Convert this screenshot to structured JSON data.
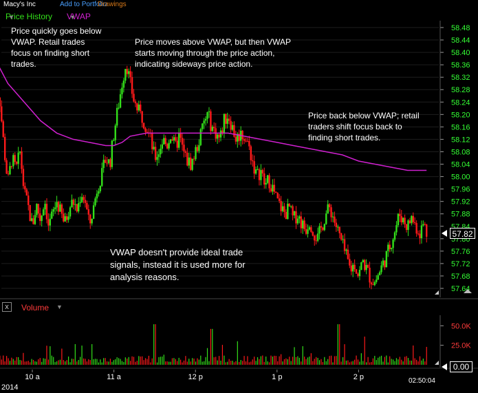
{
  "header": {
    "symbol": "Macy's Inc",
    "add_portfolio": "Add to Portfolio",
    "drawings": "Drawings",
    "price_history_label": "Price History",
    "vwap_label": "VWAP"
  },
  "volume": {
    "label": "Volume",
    "close_symbol": "x"
  },
  "footer": {
    "year": "2014",
    "time": "02:50:04"
  },
  "annotations": {
    "a1": [
      "Price quickly goes below",
      "VWAP. Retail trades",
      "focus on finding short",
      "trades."
    ],
    "a2": [
      "Price moves above VWAP, but then VWAP",
      "starts moving through the price action,",
      "indicating sideways price action."
    ],
    "a3": [
      "Price back below VWAP; retail",
      "traders shift focus back to",
      "finding short trades."
    ],
    "a4": [
      "VWAP doesn't provide ideal trade",
      "signals, instead it is used more for",
      "analysis reasons."
    ]
  },
  "colors": {
    "up": "#33e01a",
    "down": "#ff1a1a",
    "vwap": "#d020d0",
    "axis_text": "#34ff34",
    "grid": "#1e1e1e"
  },
  "chart_data": {
    "type": "candlestick",
    "price_axis": {
      "ticks": [
        "58.48",
        "58.44",
        "58.40",
        "58.36",
        "58.32",
        "58.28",
        "58.24",
        "58.20",
        "58.16",
        "58.12",
        "58.08",
        "58.04",
        "58.00",
        "57.96",
        "57.92",
        "57.88",
        "57.84",
        "57.80",
        "57.76",
        "57.72",
        "57.68",
        "57.64"
      ],
      "range": [
        57.63,
        58.49
      ]
    },
    "time_axis": {
      "ticks": [
        "10 a",
        "11 a",
        "12 p",
        "1 p",
        "2 p"
      ]
    },
    "current_price": "57.82",
    "price_path": [
      [
        "9:30",
        58.4
      ],
      [
        "9:33",
        58.3
      ],
      [
        "9:36",
        58.25
      ],
      [
        "9:39",
        58.1
      ],
      [
        "9:42",
        57.98
      ],
      [
        "9:45",
        58.06
      ],
      [
        "9:48",
        58.02
      ],
      [
        "9:51",
        58.08
      ],
      [
        "9:54",
        57.95
      ],
      [
        "9:57",
        57.9
      ],
      [
        "10:00",
        57.84
      ],
      [
        "10:03",
        57.91
      ],
      [
        "10:06",
        57.86
      ],
      [
        "10:09",
        57.93
      ],
      [
        "10:12",
        57.84
      ],
      [
        "10:15",
        57.88
      ],
      [
        "10:18",
        57.92
      ],
      [
        "10:21",
        57.88
      ],
      [
        "10:24",
        57.85
      ],
      [
        "10:27",
        57.9
      ],
      [
        "10:30",
        57.92
      ],
      [
        "10:33",
        57.89
      ],
      [
        "10:36",
        57.95
      ],
      [
        "10:39",
        57.92
      ],
      [
        "10:42",
        57.84
      ],
      [
        "10:45",
        57.9
      ],
      [
        "10:48",
        57.97
      ],
      [
        "10:51",
        58.0
      ],
      [
        "10:54",
        58.06
      ],
      [
        "10:57",
        58.04
      ],
      [
        "11:00",
        58.14
      ],
      [
        "11:03",
        58.22
      ],
      [
        "11:06",
        58.3
      ],
      [
        "11:09",
        58.37
      ],
      [
        "11:12",
        58.3
      ],
      [
        "11:15",
        58.24
      ],
      [
        "11:18",
        58.21
      ],
      [
        "11:21",
        58.19
      ],
      [
        "11:24",
        58.16
      ],
      [
        "11:27",
        58.12
      ],
      [
        "11:30",
        58.06
      ],
      [
        "11:33",
        58.08
      ],
      [
        "11:36",
        58.12
      ],
      [
        "11:39",
        58.1
      ],
      [
        "11:42",
        58.14
      ],
      [
        "11:45",
        58.09
      ],
      [
        "11:48",
        58.13
      ],
      [
        "11:51",
        58.08
      ],
      [
        "11:54",
        58.05
      ],
      [
        "11:57",
        58.04
      ],
      [
        "12:00",
        58.08
      ],
      [
        "12:03",
        58.12
      ],
      [
        "12:06",
        58.17
      ],
      [
        "12:09",
        58.2
      ],
      [
        "12:12",
        58.16
      ],
      [
        "12:15",
        58.14
      ],
      [
        "12:18",
        58.12
      ],
      [
        "12:21",
        58.18
      ],
      [
        "12:24",
        58.2
      ],
      [
        "12:27",
        58.16
      ],
      [
        "12:30",
        58.12
      ],
      [
        "12:33",
        58.14
      ],
      [
        "12:36",
        58.13
      ],
      [
        "12:39",
        58.1
      ],
      [
        "12:42",
        58.05
      ],
      [
        "12:45",
        58.0
      ],
      [
        "12:48",
        58.02
      ],
      [
        "12:51",
        57.97
      ],
      [
        "12:54",
        57.99
      ],
      [
        "12:57",
        57.96
      ],
      [
        "13:00",
        57.92
      ],
      [
        "13:03",
        57.9
      ],
      [
        "13:06",
        57.88
      ],
      [
        "13:09",
        57.9
      ],
      [
        "13:12",
        57.86
      ],
      [
        "13:15",
        57.88
      ],
      [
        "13:18",
        57.85
      ],
      [
        "13:21",
        57.83
      ],
      [
        "13:24",
        57.86
      ],
      [
        "13:27",
        57.82
      ],
      [
        "13:30",
        57.8
      ],
      [
        "13:33",
        57.84
      ],
      [
        "13:36",
        57.88
      ],
      [
        "13:39",
        57.9
      ],
      [
        "13:42",
        57.86
      ],
      [
        "13:45",
        57.82
      ],
      [
        "13:48",
        57.78
      ],
      [
        "13:51",
        57.74
      ],
      [
        "13:54",
        57.7
      ],
      [
        "13:57",
        57.72
      ],
      [
        "14:00",
        57.68
      ],
      [
        "14:03",
        57.73
      ],
      [
        "14:06",
        57.7
      ],
      [
        "14:09",
        57.67
      ],
      [
        "14:12",
        57.66
      ],
      [
        "14:15",
        57.69
      ],
      [
        "14:18",
        57.72
      ],
      [
        "14:21",
        57.75
      ],
      [
        "14:24",
        57.79
      ],
      [
        "14:27",
        57.83
      ],
      [
        "14:30",
        57.88
      ],
      [
        "14:33",
        57.86
      ],
      [
        "14:36",
        57.84
      ],
      [
        "14:39",
        57.87
      ],
      [
        "14:42",
        57.84
      ],
      [
        "14:45",
        57.82
      ],
      [
        "14:48",
        57.85
      ],
      [
        "14:50",
        57.82
      ]
    ],
    "vwap": [
      [
        "9:30",
        58.4
      ],
      [
        "9:42",
        58.3
      ],
      [
        "9:54",
        58.24
      ],
      [
        "10:06",
        58.18
      ],
      [
        "10:18",
        58.14
      ],
      [
        "10:30",
        58.12
      ],
      [
        "10:42",
        58.11
      ],
      [
        "10:54",
        58.1
      ],
      [
        "11:00",
        58.1
      ],
      [
        "11:06",
        58.11
      ],
      [
        "11:12",
        58.13
      ],
      [
        "11:24",
        58.14
      ],
      [
        "11:36",
        58.14
      ],
      [
        "11:48",
        58.14
      ],
      [
        "12:00",
        58.14
      ],
      [
        "12:12",
        58.14
      ],
      [
        "12:24",
        58.14
      ],
      [
        "12:36",
        58.13
      ],
      [
        "12:48",
        58.12
      ],
      [
        "13:00",
        58.11
      ],
      [
        "13:12",
        58.1
      ],
      [
        "13:24",
        58.09
      ],
      [
        "13:36",
        58.08
      ],
      [
        "13:48",
        58.07
      ],
      [
        "14:00",
        58.05
      ],
      [
        "14:12",
        58.04
      ],
      [
        "14:24",
        58.03
      ],
      [
        "14:36",
        58.02
      ],
      [
        "14:50",
        58.02
      ]
    ],
    "volume_axis": {
      "ticks": [
        "50.0K",
        "25.0K"
      ],
      "current": "0.00"
    }
  }
}
